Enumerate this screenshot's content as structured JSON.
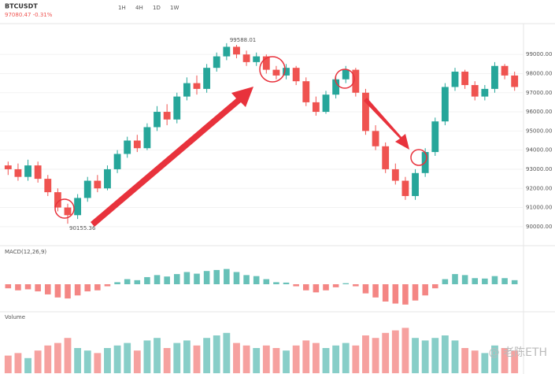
{
  "header": {
    "symbol": "BTCUSDT",
    "quote": "97080.47 -0.31%",
    "intervals": [
      "1H",
      "4H",
      "1D",
      "1W"
    ]
  },
  "chart_data": {
    "type": "candlestick",
    "candles": [
      [
        93200,
        93400,
        92700,
        93000
      ],
      [
        93000,
        93300,
        92400,
        92600
      ],
      [
        92600,
        93500,
        92400,
        93200
      ],
      [
        93200,
        93400,
        92300,
        92500
      ],
      [
        92500,
        92700,
        91600,
        91800
      ],
      [
        91800,
        92000,
        90800,
        91000
      ],
      [
        91000,
        91200,
        90155,
        90600
      ],
      [
        90600,
        91700,
        90400,
        91500
      ],
      [
        91500,
        92600,
        91300,
        92400
      ],
      [
        92400,
        92700,
        91800,
        92000
      ],
      [
        92000,
        93200,
        91900,
        93000
      ],
      [
        93000,
        94000,
        92800,
        93800
      ],
      [
        93800,
        94700,
        93600,
        94500
      ],
      [
        94500,
        94800,
        93900,
        94100
      ],
      [
        94100,
        95400,
        94000,
        95200
      ],
      [
        95200,
        96300,
        95000,
        96000
      ],
      [
        96000,
        96400,
        95300,
        95600
      ],
      [
        95600,
        97000,
        95400,
        96800
      ],
      [
        96800,
        97800,
        96600,
        97500
      ],
      [
        97500,
        97900,
        96900,
        97200
      ],
      [
        97200,
        98500,
        97000,
        98300
      ],
      [
        98300,
        99100,
        98100,
        98900
      ],
      [
        98900,
        99588,
        98700,
        99400
      ],
      [
        99400,
        99500,
        98800,
        99000
      ],
      [
        99000,
        99200,
        98400,
        98600
      ],
      [
        98600,
        99100,
        98400,
        98900
      ],
      [
        98900,
        99000,
        98000,
        98200
      ],
      [
        98200,
        98400,
        97700,
        97900
      ],
      [
        97900,
        98500,
        97700,
        98300
      ],
      [
        98300,
        98400,
        97400,
        97600
      ],
      [
        97600,
        97800,
        96300,
        96500
      ],
      [
        96500,
        96800,
        95800,
        96000
      ],
      [
        96000,
        97100,
        95900,
        96900
      ],
      [
        96900,
        97900,
        96700,
        97700
      ],
      [
        97700,
        98400,
        97500,
        98200
      ],
      [
        98200,
        98300,
        96800,
        97000
      ],
      [
        97000,
        97200,
        94800,
        95000
      ],
      [
        95000,
        95300,
        94000,
        94200
      ],
      [
        94200,
        94400,
        92800,
        93000
      ],
      [
        93000,
        93300,
        92200,
        92400
      ],
      [
        92400,
        92600,
        91400,
        91600
      ],
      [
        91600,
        93000,
        91400,
        92800
      ],
      [
        92800,
        94100,
        92600,
        93900
      ],
      [
        93900,
        95700,
        93700,
        95500
      ],
      [
        95500,
        97500,
        95300,
        97300
      ],
      [
        97300,
        98300,
        97100,
        98100
      ],
      [
        98100,
        98200,
        97200,
        97400
      ],
      [
        97400,
        97600,
        96600,
        96800
      ],
      [
        96800,
        97400,
        96600,
        97200
      ],
      [
        97200,
        98600,
        97000,
        98400
      ],
      [
        98400,
        98500,
        97700,
        97900
      ],
      [
        97900,
        98100,
        97100,
        97300
      ]
    ],
    "up_color": "#26a69a",
    "down_color": "#ef5350",
    "ylim": [
      89500,
      100200
    ],
    "yticks": [
      {
        "value": 90000,
        "label": "90000.00"
      },
      {
        "value": 91000,
        "label": "91000.00"
      },
      {
        "value": 92000,
        "label": "92000.00"
      },
      {
        "value": 93000,
        "label": "93000.00"
      },
      {
        "value": 94000,
        "label": "94000.00"
      },
      {
        "value": 95000,
        "label": "95000.00"
      },
      {
        "value": 96000,
        "label": "96000.00"
      },
      {
        "value": 97000,
        "label": "97000.00"
      },
      {
        "value": 98000,
        "label": "98000.00"
      },
      {
        "value": 99000,
        "label": "99000.00"
      }
    ],
    "grid": true,
    "high_label": "99588.01",
    "low_label": "90155.36",
    "macd": {
      "name": "MACD(12,26,9)",
      "values": [
        -200,
        -300,
        -250,
        -350,
        -500,
        -650,
        -700,
        -550,
        -350,
        -300,
        -100,
        100,
        250,
        200,
        350,
        450,
        380,
        500,
        600,
        520,
        650,
        700,
        750,
        600,
        450,
        400,
        250,
        100,
        80,
        -100,
        -300,
        -400,
        -300,
        -150,
        50,
        -100,
        -450,
        -650,
        -850,
        -950,
        -1000,
        -800,
        -550,
        -200,
        250,
        500,
        450,
        300,
        280,
        400,
        300,
        200
      ],
      "ylim": [
        -1200,
        1200
      ]
    },
    "volume": {
      "name": "Volume",
      "values": [
        35,
        40,
        30,
        45,
        55,
        60,
        70,
        50,
        45,
        40,
        50,
        55,
        60,
        45,
        65,
        70,
        50,
        60,
        65,
        55,
        70,
        75,
        80,
        60,
        55,
        50,
        55,
        50,
        45,
        55,
        65,
        60,
        50,
        55,
        60,
        55,
        75,
        70,
        80,
        85,
        90,
        70,
        65,
        70,
        75,
        65,
        50,
        45,
        40,
        55,
        50,
        45
      ],
      "ylim": [
        0,
        100
      ]
    }
  },
  "watermark": "@ 老陈ETH"
}
